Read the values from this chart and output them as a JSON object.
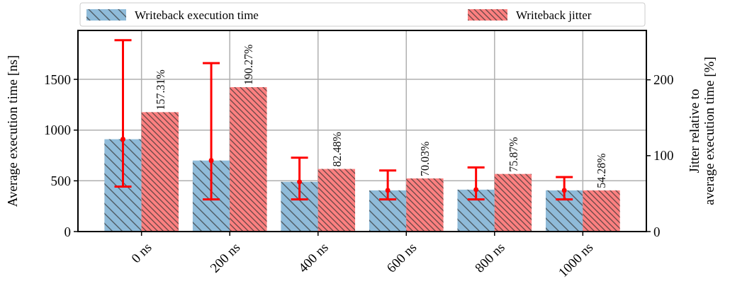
{
  "chart_data": {
    "type": "bar",
    "categories": [
      "0 ns",
      "200 ns",
      "400 ns",
      "600 ns",
      "800 ns",
      "1000 ns"
    ],
    "ylabel": "Average execution time [ns]",
    "y2label": "Jitter relative to\naverage execution time [%]",
    "ylim": [
      0,
      1982
    ],
    "yticks": [
      0,
      500,
      1000,
      1500
    ],
    "y2lim": [
      0,
      265
    ],
    "y2ticks": [
      0,
      100,
      200
    ],
    "series": [
      {
        "name": "Writeback execution time",
        "color": "#8fbbd9",
        "values": [
          910,
          700,
          490,
          406,
          413,
          406
        ]
      },
      {
        "name": "Writeback jitter",
        "color": "#ff8080",
        "axis": "y2",
        "values": [
          157.31,
          190.27,
          82.48,
          70.03,
          75.87,
          54.28
        ],
        "value_labels": [
          "157.31%",
          "190.27%",
          "82.48%",
          "70.03%",
          "75.87%",
          "54.28%"
        ]
      },
      {
        "type": "scatter",
        "color": "#ff0000",
        "values": [
          910,
          700,
          490,
          406,
          413,
          406
        ],
        "errors": [
          [
            443,
            1886
          ],
          [
            317,
            1660
          ],
          [
            317,
            728
          ],
          [
            317,
            602
          ],
          [
            317,
            632
          ],
          [
            317,
            537
          ]
        ]
      }
    ],
    "grid": true,
    "legend": "top",
    "marker": "circle"
  }
}
